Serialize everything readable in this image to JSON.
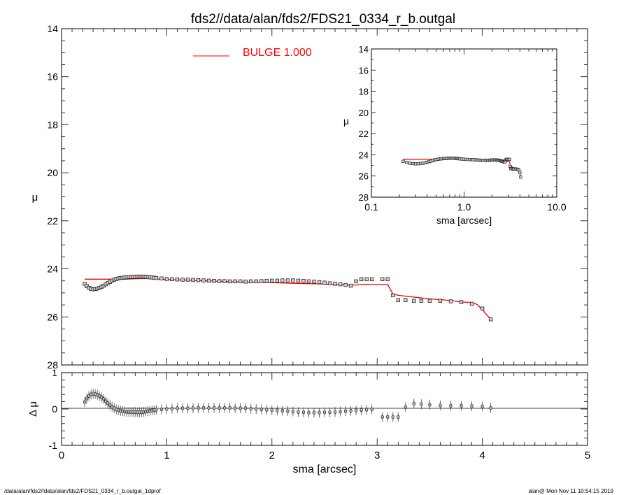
{
  "title": "fds2//data/alan/fds2/FDS21_0334_r_b.outgal",
  "footer": {
    "left": "/data/alan/fds2//data/alan/fds2/FDS21_0334_r_b.outgal_1dprof",
    "right": "alan@  Mon Nov 11 10:54:15 2019"
  },
  "legend": {
    "label": "BULGE  1.000",
    "color": "#ff0000",
    "placement": "top-center"
  },
  "colors": {
    "model": "#ee0000",
    "data": "#000000"
  },
  "chart_data": [
    {
      "id": "main",
      "type": "scatter",
      "xlabel": "sma [arcsec]",
      "ylabel": "μ",
      "xlim": [
        0,
        5
      ],
      "ylim": [
        28,
        14
      ],
      "xticks": [
        0,
        1,
        2,
        3,
        4,
        5
      ],
      "yticks": [
        14,
        16,
        18,
        20,
        22,
        24,
        26,
        28
      ],
      "xtick_labels": [
        "0",
        "1",
        "2",
        "3",
        "4",
        "5"
      ],
      "ytick_labels": [
        "14",
        "16",
        "18",
        "20",
        "22",
        "24",
        "26",
        "28"
      ],
      "series": [
        {
          "kind": "data-points",
          "x": [
            0.22,
            0.24,
            0.26,
            0.28,
            0.3,
            0.32,
            0.34,
            0.36,
            0.38,
            0.4,
            0.42,
            0.44,
            0.46,
            0.48,
            0.5,
            0.52,
            0.54,
            0.56,
            0.58,
            0.6,
            0.62,
            0.64,
            0.66,
            0.68,
            0.7,
            0.72,
            0.74,
            0.76,
            0.78,
            0.8,
            0.82,
            0.84,
            0.86,
            0.88,
            0.9,
            0.95,
            1.0,
            1.05,
            1.1,
            1.15,
            1.2,
            1.25,
            1.3,
            1.35,
            1.4,
            1.45,
            1.5,
            1.55,
            1.6,
            1.65,
            1.7,
            1.75,
            1.8,
            1.85,
            1.9,
            1.95,
            2.0,
            2.05,
            2.1,
            2.15,
            2.2,
            2.25,
            2.3,
            2.35,
            2.4,
            2.45,
            2.5,
            2.55,
            2.6,
            2.65,
            2.7,
            2.75,
            2.8,
            2.85,
            2.9,
            2.95,
            3.05,
            3.1,
            3.15,
            3.2,
            3.27,
            3.35,
            3.42,
            3.5,
            3.6,
            3.7,
            3.8,
            3.9,
            4.0,
            4.08
          ],
          "y": [
            24.62,
            24.72,
            24.79,
            24.83,
            24.85,
            24.84,
            24.82,
            24.79,
            24.75,
            24.7,
            24.64,
            24.59,
            24.54,
            24.49,
            24.45,
            24.42,
            24.4,
            24.38,
            24.37,
            24.36,
            24.35,
            24.34,
            24.33,
            24.33,
            24.33,
            24.32,
            24.32,
            24.32,
            24.32,
            24.33,
            24.34,
            24.35,
            24.36,
            24.37,
            24.38,
            24.4,
            24.42,
            24.43,
            24.44,
            24.45,
            24.45,
            24.46,
            24.47,
            24.48,
            24.49,
            24.5,
            24.51,
            24.51,
            24.52,
            24.52,
            24.52,
            24.53,
            24.52,
            24.52,
            24.51,
            24.5,
            24.49,
            24.49,
            24.48,
            24.48,
            24.48,
            24.49,
            24.5,
            24.52,
            24.53,
            24.55,
            24.57,
            24.6,
            24.62,
            24.64,
            24.67,
            24.7,
            24.52,
            24.43,
            24.43,
            24.43,
            24.43,
            24.43,
            25.1,
            25.3,
            25.3,
            25.33,
            25.33,
            25.33,
            25.33,
            25.35,
            25.38,
            25.45,
            25.65,
            26.1
          ]
        },
        {
          "kind": "model",
          "x": [
            0.22,
            0.3,
            0.4,
            0.5,
            0.6,
            0.7,
            0.8,
            0.9,
            1.0,
            1.2,
            1.4,
            1.6,
            1.8,
            2.0,
            2.2,
            2.4,
            2.6,
            2.7,
            2.75,
            2.8,
            2.85,
            2.9,
            3.0,
            3.05,
            3.1,
            3.15,
            3.2,
            3.3,
            3.4,
            3.5,
            3.6,
            3.7,
            3.8,
            3.9,
            3.95,
            4.0,
            4.05,
            4.08
          ],
          "y": [
            24.43,
            24.43,
            24.43,
            24.43,
            24.43,
            24.41,
            24.4,
            24.42,
            24.44,
            24.47,
            24.5,
            24.53,
            24.55,
            24.57,
            24.6,
            24.62,
            24.65,
            24.67,
            24.68,
            24.67,
            24.65,
            24.64,
            24.65,
            24.65,
            24.65,
            25.05,
            25.1,
            25.15,
            25.2,
            25.25,
            25.28,
            25.32,
            25.38,
            25.4,
            25.48,
            25.7,
            25.95,
            26.1
          ]
        }
      ]
    },
    {
      "id": "inset",
      "type": "scatter",
      "xlabel": "sma [arcsec]",
      "ylabel": "μ",
      "xscale": "log",
      "xlim": [
        0.1,
        10.0
      ],
      "ylim": [
        28,
        14
      ],
      "xticks": [
        0.1,
        1.0,
        10.0
      ],
      "yticks": [
        14,
        16,
        18,
        20,
        22,
        24,
        26,
        28
      ],
      "xtick_labels": [
        "0.1",
        "1.0",
        "10.0"
      ],
      "ytick_labels": [
        "14",
        "16",
        "18",
        "20",
        "22",
        "24",
        "26",
        "28"
      ],
      "note": "same data as main panel on logarithmic sma axis"
    },
    {
      "id": "residual",
      "type": "scatter",
      "xlabel": "sma [arcsec]",
      "ylabel": "Δ μ",
      "xlim": [
        0,
        5
      ],
      "ylim": [
        -1,
        1
      ],
      "xticks": [
        0,
        1,
        2,
        3,
        4,
        5
      ],
      "yticks": [
        -1,
        0,
        1
      ],
      "xtick_labels": [
        "0",
        "1",
        "2",
        "3",
        "4",
        "5"
      ],
      "ytick_labels": [
        "-1",
        "0",
        "1"
      ],
      "x": [
        0.22,
        0.24,
        0.26,
        0.28,
        0.3,
        0.32,
        0.34,
        0.36,
        0.38,
        0.4,
        0.42,
        0.44,
        0.46,
        0.48,
        0.5,
        0.52,
        0.54,
        0.56,
        0.58,
        0.6,
        0.62,
        0.64,
        0.66,
        0.68,
        0.7,
        0.72,
        0.74,
        0.76,
        0.78,
        0.8,
        0.82,
        0.84,
        0.86,
        0.88,
        0.9,
        0.95,
        1.0,
        1.05,
        1.1,
        1.15,
        1.2,
        1.25,
        1.3,
        1.35,
        1.4,
        1.45,
        1.5,
        1.55,
        1.6,
        1.65,
        1.7,
        1.75,
        1.8,
        1.85,
        1.9,
        1.95,
        2.0,
        2.05,
        2.1,
        2.15,
        2.2,
        2.25,
        2.3,
        2.35,
        2.4,
        2.45,
        2.5,
        2.55,
        2.6,
        2.65,
        2.7,
        2.75,
        2.8,
        2.85,
        2.9,
        2.95,
        3.05,
        3.1,
        3.15,
        3.2,
        3.27,
        3.35,
        3.42,
        3.5,
        3.6,
        3.7,
        3.8,
        3.9,
        4.0,
        4.08
      ],
      "y": [
        0.19,
        0.29,
        0.36,
        0.4,
        0.42,
        0.41,
        0.39,
        0.36,
        0.32,
        0.27,
        0.21,
        0.16,
        0.11,
        0.06,
        0.02,
        -0.01,
        -0.03,
        -0.05,
        -0.06,
        -0.07,
        -0.08,
        -0.08,
        -0.08,
        -0.08,
        -0.08,
        -0.09,
        -0.09,
        -0.09,
        -0.08,
        -0.07,
        -0.06,
        -0.05,
        -0.04,
        -0.03,
        -0.02,
        -0.01,
        0.0,
        0.01,
        0.02,
        0.02,
        0.02,
        0.02,
        0.03,
        0.03,
        0.03,
        0.03,
        0.03,
        0.03,
        0.03,
        0.02,
        0.02,
        0.02,
        0.01,
        0.0,
        -0.01,
        -0.02,
        -0.03,
        -0.04,
        -0.05,
        -0.06,
        -0.07,
        -0.08,
        -0.09,
        -0.1,
        -0.1,
        -0.1,
        -0.09,
        -0.09,
        -0.08,
        -0.07,
        -0.06,
        -0.05,
        -0.04,
        -0.03,
        -0.02,
        -0.01,
        -0.22,
        -0.22,
        -0.22,
        -0.22,
        0.05,
        0.15,
        0.13,
        0.12,
        0.1,
        0.09,
        0.09,
        0.08,
        0.07,
        0.03
      ]
    }
  ]
}
